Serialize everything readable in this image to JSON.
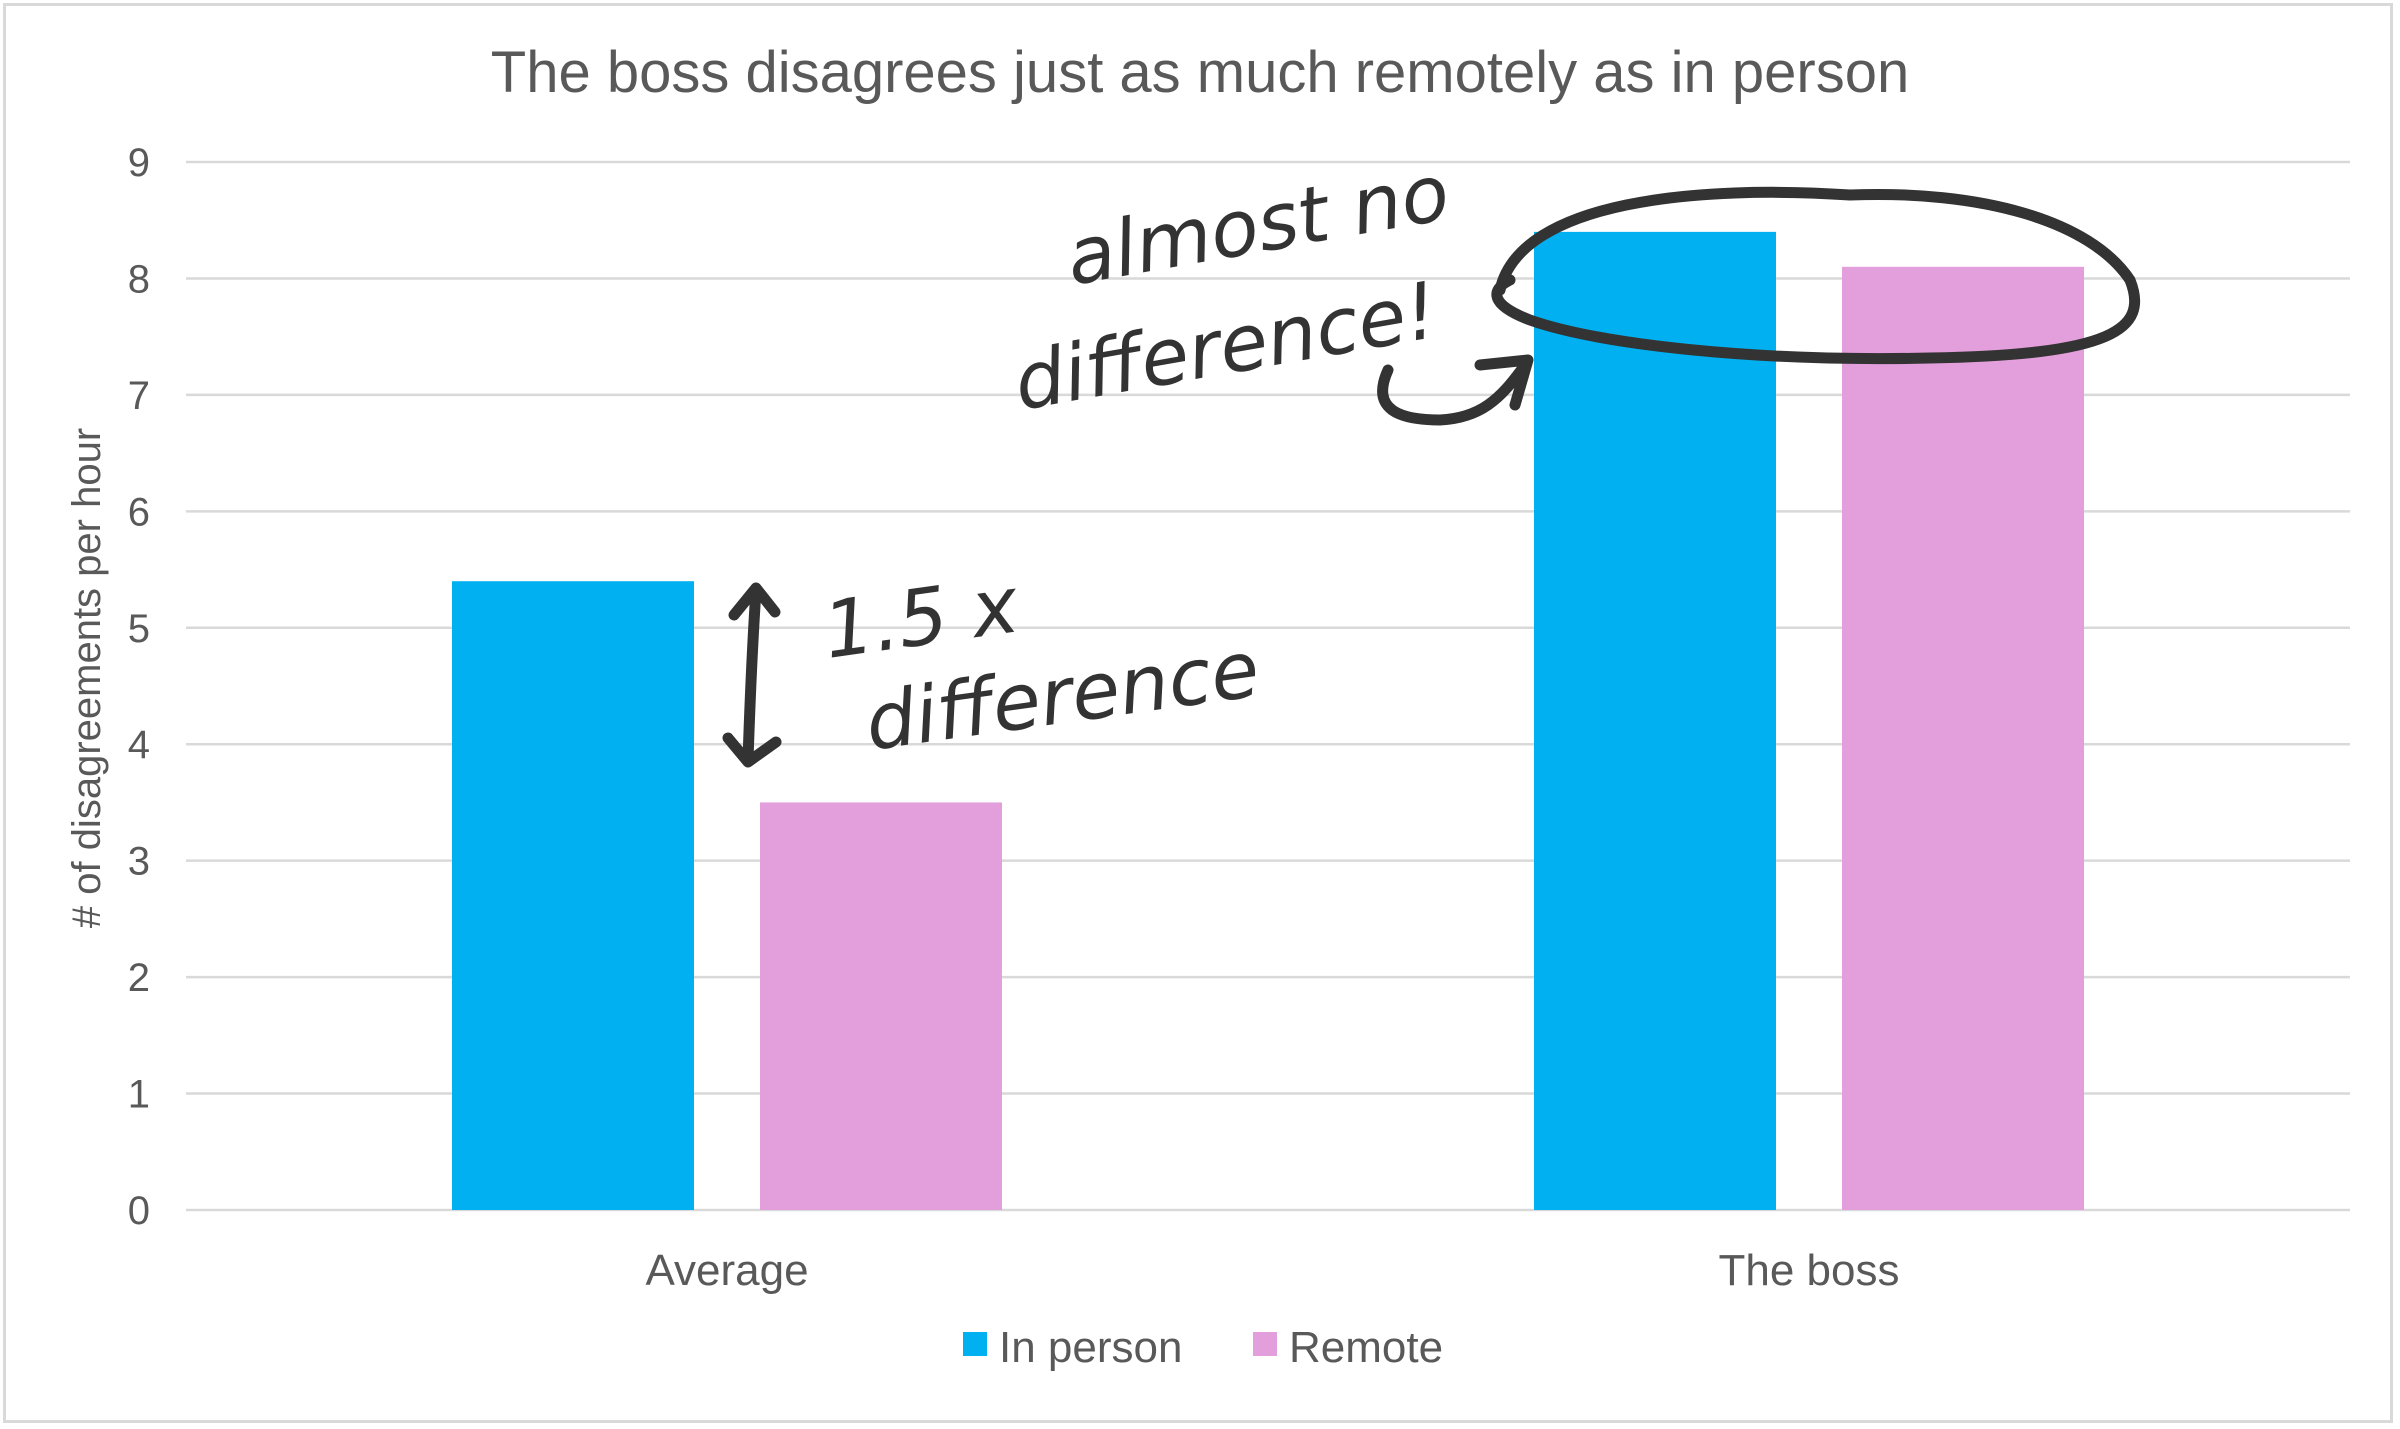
{
  "chart_data": {
    "type": "bar",
    "title": "The boss disagrees just as much remotely as in person",
    "xlabel": "",
    "ylabel": "# of disagreements per hour",
    "ylim": [
      0,
      9
    ],
    "yticks": [
      0,
      1,
      2,
      3,
      4,
      5,
      6,
      7,
      8,
      9
    ],
    "categories": [
      "Average",
      "The boss"
    ],
    "series": [
      {
        "name": "In person",
        "values": [
          5.4,
          8.4
        ],
        "color": "#00b0f0"
      },
      {
        "name": "Remote",
        "values": [
          3.5,
          8.1
        ],
        "color": "#e39fdc"
      }
    ],
    "grid": true,
    "legend": "bottom",
    "annotations": [
      {
        "text_lines": [
          "1.5 x",
          "difference"
        ],
        "target": "Average"
      },
      {
        "text_lines": [
          "almost no",
          "difference!"
        ],
        "target": "The boss"
      }
    ]
  }
}
